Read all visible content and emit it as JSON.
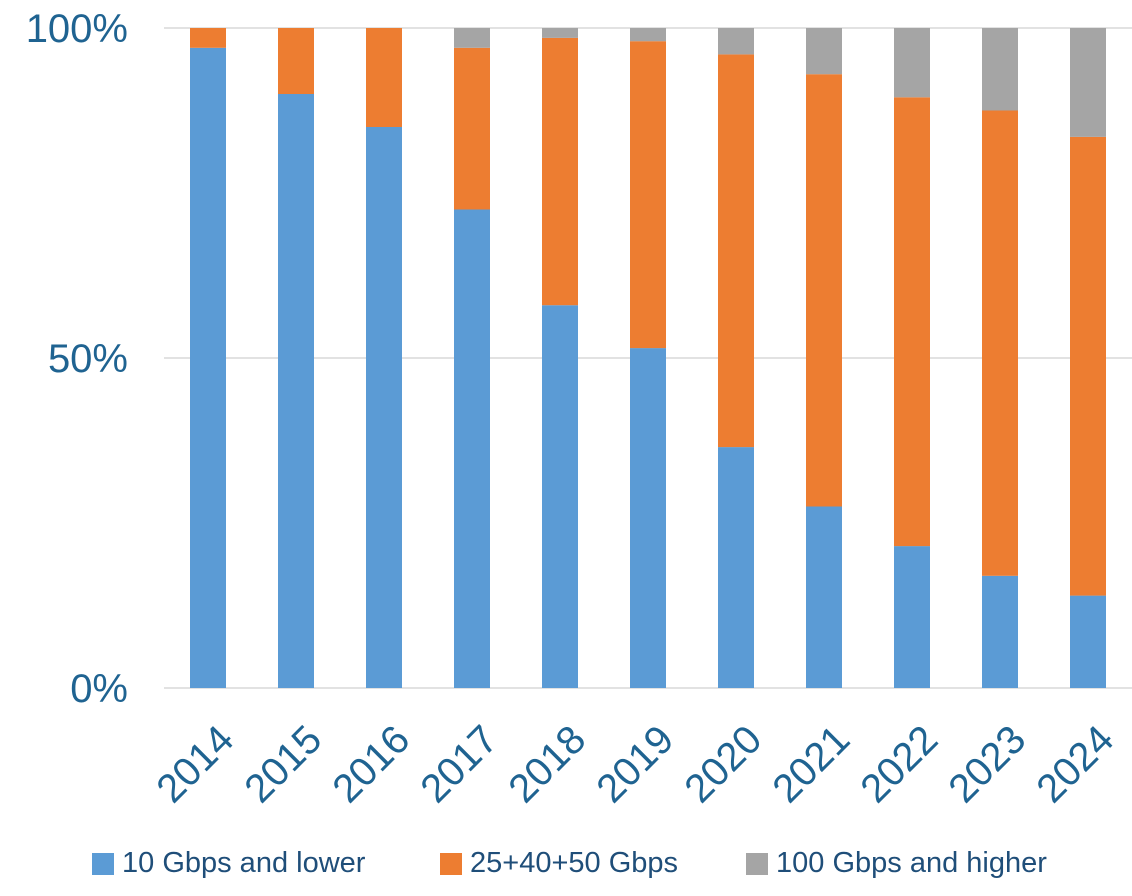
{
  "chart_data": {
    "type": "bar",
    "stacked": true,
    "title": "",
    "xlabel": "",
    "ylabel": "",
    "categories": [
      "2014",
      "2015",
      "2016",
      "2017",
      "2018",
      "2019",
      "2020",
      "2021",
      "2022",
      "2023",
      "2024"
    ],
    "series": [
      {
        "name": "10 Gbps and lower",
        "color": "#5B9BD5",
        "values": [
          97,
          90,
          85,
          72.5,
          58,
          51.5,
          36.5,
          27.5,
          21.5,
          17,
          14
        ]
      },
      {
        "name": "25+40+50 Gbps",
        "color": "#ED7D31",
        "values": [
          3,
          10,
          15,
          24.5,
          40.5,
          46.5,
          59.5,
          65.5,
          68,
          70.5,
          69.5
        ]
      },
      {
        "name": "100 Gbps and higher",
        "color": "#A5A5A5",
        "values": [
          0,
          0,
          0,
          3,
          1.5,
          2,
          4,
          7,
          10.5,
          12.5,
          16.5
        ]
      }
    ],
    "ylim": [
      0,
      100
    ],
    "yticks": [
      "0%",
      "50%",
      "100%"
    ],
    "ytick_values": [
      0,
      50,
      100
    ],
    "grid": true,
    "legend_position": "bottom",
    "colors": {
      "axis_text": "#1F6391",
      "legend_text": "#1F4E79",
      "gridline": "#D9D9D9"
    }
  }
}
